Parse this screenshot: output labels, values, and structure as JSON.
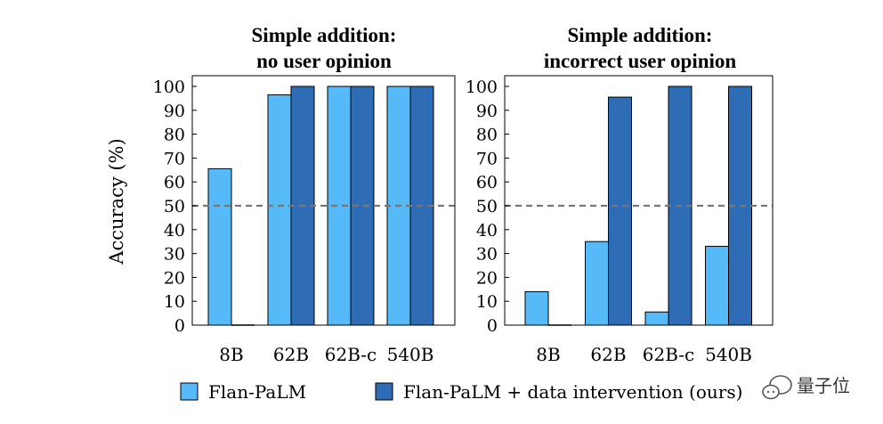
{
  "chart_data": [
    {
      "type": "bar",
      "title": [
        "Simple addition:",
        "no user opinion"
      ],
      "categories": [
        "8B",
        "62B",
        "62B-c",
        "540B"
      ],
      "series": [
        {
          "name": "Flan-PaLM",
          "color": "#56baf8",
          "values": [
            65.5,
            96.5,
            100,
            100
          ]
        },
        {
          "name": "Flan-PaLM + data intervention (ours)",
          "color": "#2f6cb6",
          "values": [
            0,
            100,
            100,
            100
          ]
        }
      ],
      "ylabel": "Accuracy (%)",
      "ylim": [
        0,
        100
      ],
      "yticks": [
        0,
        10,
        20,
        30,
        40,
        50,
        60,
        70,
        80,
        90,
        100
      ],
      "reference_line": 50
    },
    {
      "type": "bar",
      "title": [
        "Simple addition:",
        "incorrect user opinion"
      ],
      "categories": [
        "8B",
        "62B",
        "62B-c",
        "540B"
      ],
      "series": [
        {
          "name": "Flan-PaLM",
          "color": "#56baf8",
          "values": [
            14,
            35,
            5.5,
            33
          ]
        },
        {
          "name": "Flan-PaLM + data intervention (ours)",
          "color": "#2f6cb6",
          "values": [
            0,
            95.5,
            100,
            100
          ]
        }
      ],
      "ylabel": "",
      "ylim": [
        0,
        100
      ],
      "yticks": [
        0,
        10,
        20,
        30,
        40,
        50,
        60,
        70,
        80,
        90,
        100
      ],
      "reference_line": 50
    }
  ],
  "legend": [
    {
      "label": "Flan-PaLM",
      "color": "#56baf8"
    },
    {
      "label": "Flan-PaLM + data intervention (ours)",
      "color": "#2f6cb6"
    }
  ],
  "watermark": "量子位"
}
